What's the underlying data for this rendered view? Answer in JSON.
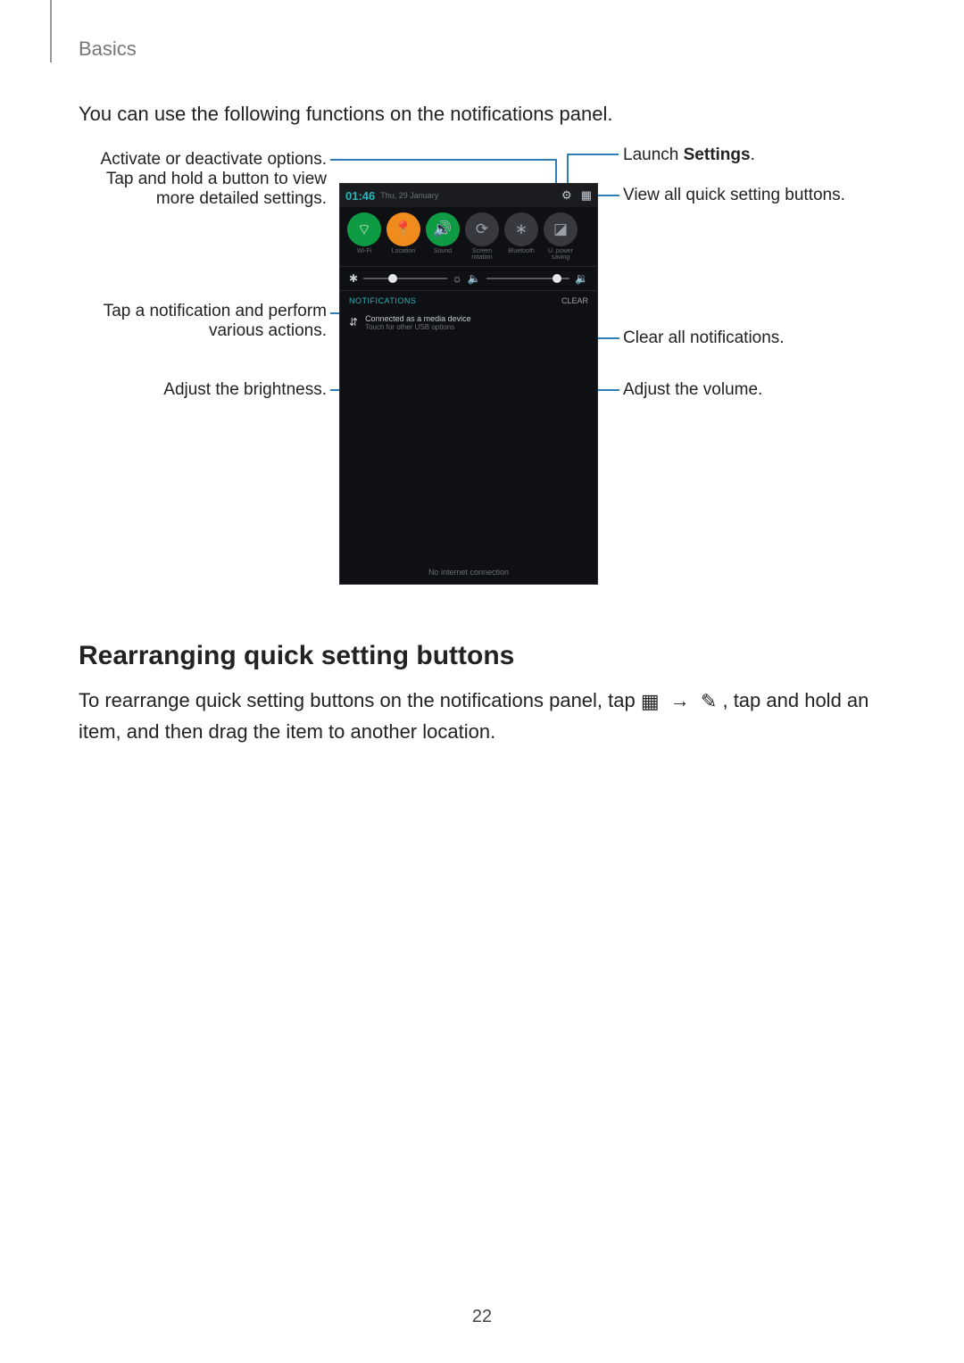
{
  "breadcrumb": "Basics",
  "intro": "You can use the following functions on the notifications panel.",
  "callouts": {
    "activate": "Activate or deactivate options. Tap and hold a button to view more detailed settings.",
    "notif": "Tap a notification and perform various actions.",
    "brightness": "Adjust the brightness.",
    "launch_settings_pre": "Launch ",
    "launch_settings_bold": "Settings",
    "launch_settings_post": ".",
    "view_all": "View all quick setting buttons.",
    "clear": "Clear all notifications.",
    "volume": "Adjust the volume."
  },
  "phone": {
    "time": "01:46",
    "date": "Thu, 29 January",
    "gear_icon": "⚙",
    "grid_icon": "▦",
    "quick": [
      {
        "label": "Wi-Fi",
        "glyph": "⌔",
        "state": "on"
      },
      {
        "label": "Location",
        "glyph": "📍",
        "state": "on2"
      },
      {
        "label": "Sound",
        "glyph": "🔊",
        "state": "on"
      },
      {
        "label": "Screen rotation",
        "glyph": "⟳",
        "state": "off"
      },
      {
        "label": "Bluetooth",
        "glyph": "∗",
        "state": "off"
      },
      {
        "label": "U. power saving",
        "glyph": "◪",
        "state": "off"
      }
    ],
    "slider": {
      "bright_icon_left": "✱",
      "bright_icon_right": "☼",
      "bright_pos_pct": 30,
      "vol_icon_left": "🔈",
      "vol_icon_right": "🔉",
      "vol_pos_pct": 80
    },
    "notif_header": "NOTIFICATIONS",
    "clear_label": "CLEAR",
    "notif_icon": "⇵",
    "notif_title": "Connected as a media device",
    "notif_sub": "Touch for other USB options",
    "footer": "No internet connection"
  },
  "section_heading": "Rearranging quick setting buttons",
  "paragraph": {
    "p1": "To rearrange quick setting buttons on the notifications panel, tap ",
    "icon1": "▦",
    "arrow": "→",
    "icon2": "✎",
    "p2": ", tap and hold an item, and then drag the item to another location."
  },
  "page_number": "22",
  "colors": {
    "leader": "#2f7db6",
    "phone_bg": "#0f1013",
    "accent": "#2bb3b8",
    "on_green": "#0f9b44",
    "on_orange": "#f08b1e"
  }
}
